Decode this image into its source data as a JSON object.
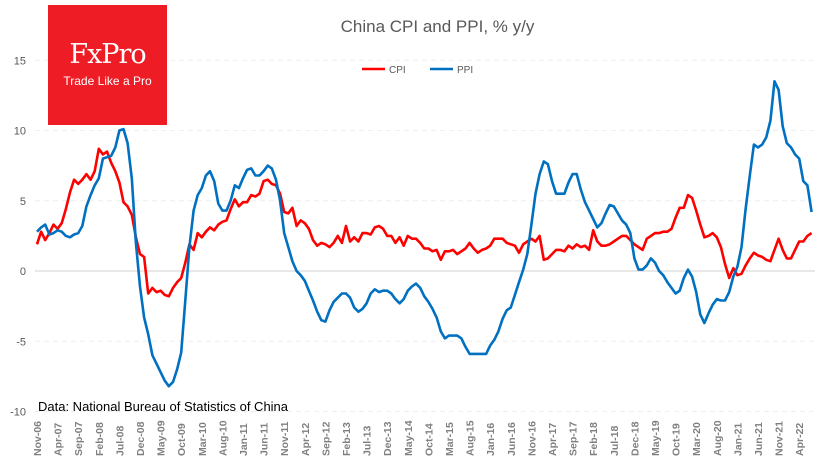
{
  "logo": {
    "brand": "FxPro",
    "tagline": "Trade Like a Pro"
  },
  "source_note": "Data: National Bureau of Statistics of China",
  "chart_data": {
    "type": "line",
    "title": "China CPI and PPI, % y/y",
    "xlabel": "",
    "ylabel": "",
    "ylim": [
      -10,
      15
    ],
    "y_ticks": [
      -10,
      -5,
      0,
      5,
      10,
      15
    ],
    "grid": true,
    "legend_position": "top-center",
    "start_month": "Nov-06",
    "end_month": "Jul-22",
    "x_tick_every_months": 5,
    "x_tick_labels": [
      "Nov-06",
      "Apr-07",
      "Sep-07",
      "Feb-08",
      "Jul-08",
      "Dec-08",
      "May-09",
      "Oct-09",
      "Mar-10",
      "Aug-10",
      "Jan-11",
      "Jun-11",
      "Nov-11",
      "Apr-12",
      "Sep-12",
      "Feb-13",
      "Jul-13",
      "Dec-13",
      "May-14",
      "Oct-14",
      "Mar-15",
      "Aug-15",
      "Jan-16",
      "Jun-16",
      "Nov-16",
      "Apr-17",
      "Sep-17",
      "Feb-18",
      "Jul-18",
      "Dec-18",
      "May-19",
      "Oct-19",
      "Mar-20",
      "Aug-20",
      "Jan-21",
      "Jun-21",
      "Nov-21",
      "Apr-22"
    ],
    "series": [
      {
        "name": "CPI",
        "color": "#ff0000",
        "values": [
          1.9,
          2.8,
          2.2,
          2.7,
          3.3,
          3.0,
          3.4,
          4.4,
          5.6,
          6.5,
          6.2,
          6.5,
          6.9,
          6.5,
          7.1,
          8.7,
          8.3,
          8.5,
          7.7,
          7.1,
          6.3,
          4.9,
          4.6,
          4.0,
          2.4,
          1.2,
          1.0,
          -1.6,
          -1.2,
          -1.5,
          -1.4,
          -1.7,
          -1.8,
          -1.2,
          -0.8,
          -0.5,
          0.6,
          1.9,
          1.5,
          2.7,
          2.4,
          2.8,
          3.1,
          2.9,
          3.3,
          3.5,
          3.6,
          4.4,
          5.1,
          4.6,
          4.9,
          4.9,
          5.4,
          5.3,
          5.5,
          6.4,
          6.5,
          6.2,
          6.1,
          5.5,
          4.2,
          4.1,
          4.5,
          3.2,
          3.6,
          3.4,
          3.0,
          2.2,
          1.8,
          2.0,
          1.9,
          1.7,
          2.0,
          2.5,
          2.0,
          3.2,
          2.1,
          2.4,
          2.1,
          2.7,
          2.7,
          2.6,
          3.1,
          3.2,
          3.0,
          2.5,
          2.5,
          2.0,
          2.4,
          1.8,
          2.5,
          2.3,
          2.3,
          2.0,
          1.6,
          1.6,
          1.4,
          1.5,
          0.8,
          1.4,
          1.4,
          1.5,
          1.2,
          1.4,
          1.6,
          2.0,
          1.6,
          1.3,
          1.5,
          1.6,
          1.8,
          2.3,
          2.3,
          2.3,
          2.0,
          1.9,
          1.8,
          1.3,
          1.9,
          2.1,
          2.3,
          2.1,
          2.5,
          0.8,
          0.9,
          1.2,
          1.5,
          1.5,
          1.4,
          1.8,
          1.6,
          1.9,
          1.7,
          1.8,
          1.5,
          2.9,
          2.1,
          1.8,
          1.8,
          1.9,
          2.1,
          2.3,
          2.5,
          2.5,
          2.2,
          1.9,
          1.7,
          1.5,
          2.3,
          2.5,
          2.7,
          2.7,
          2.8,
          2.8,
          3.0,
          3.8,
          4.5,
          4.5,
          5.4,
          5.2,
          4.3,
          3.3,
          2.4,
          2.5,
          2.7,
          2.4,
          1.7,
          0.5,
          -0.5,
          0.2,
          -0.3,
          -0.2,
          0.4,
          0.9,
          1.3,
          1.1,
          1.0,
          0.8,
          0.7,
          1.5,
          2.3,
          1.5,
          0.9,
          0.9,
          1.5,
          2.1,
          2.1,
          2.5,
          2.7
        ]
      },
      {
        "name": "PPI",
        "color": "#0070c0",
        "values": [
          2.8,
          3.1,
          3.3,
          2.6,
          2.7,
          2.9,
          2.8,
          2.5,
          2.4,
          2.6,
          2.7,
          3.2,
          4.6,
          5.4,
          6.1,
          6.6,
          8.0,
          8.1,
          8.2,
          8.8,
          10.0,
          10.1,
          9.1,
          6.6,
          2.0,
          -1.1,
          -3.3,
          -4.5,
          -6.0,
          -6.6,
          -7.2,
          -7.8,
          -8.2,
          -7.9,
          -7.0,
          -5.8,
          -2.1,
          1.7,
          4.3,
          5.4,
          5.9,
          6.8,
          7.1,
          6.4,
          4.8,
          4.3,
          4.3,
          5.0,
          6.1,
          5.9,
          6.6,
          7.2,
          7.3,
          6.8,
          6.8,
          7.1,
          7.5,
          7.3,
          6.5,
          5.0,
          2.7,
          1.7,
          0.7,
          0.0,
          -0.3,
          -0.7,
          -1.4,
          -2.1,
          -2.9,
          -3.5,
          -3.6,
          -2.8,
          -2.2,
          -1.9,
          -1.6,
          -1.6,
          -1.9,
          -2.6,
          -2.9,
          -2.7,
          -2.3,
          -1.6,
          -1.3,
          -1.5,
          -1.4,
          -1.4,
          -1.6,
          -2.0,
          -2.3,
          -2.0,
          -1.4,
          -1.1,
          -0.9,
          -1.2,
          -1.8,
          -2.2,
          -2.7,
          -3.3,
          -4.3,
          -4.8,
          -4.6,
          -4.6,
          -4.6,
          -4.8,
          -5.4,
          -5.9,
          -5.9,
          -5.9,
          -5.9,
          -5.9,
          -5.3,
          -4.9,
          -4.3,
          -3.4,
          -2.8,
          -2.6,
          -1.7,
          -0.8,
          0.1,
          1.2,
          3.3,
          5.5,
          6.9,
          7.8,
          7.6,
          6.4,
          5.5,
          5.5,
          5.5,
          6.3,
          6.9,
          6.9,
          5.8,
          4.9,
          4.3,
          3.7,
          3.1,
          3.4,
          4.1,
          4.7,
          4.6,
          4.1,
          3.6,
          3.3,
          2.7,
          0.9,
          0.1,
          0.1,
          0.4,
          0.9,
          0.6,
          0.0,
          -0.3,
          -0.8,
          -1.2,
          -1.6,
          -1.4,
          -0.5,
          0.1,
          -0.4,
          -1.5,
          -3.1,
          -3.7,
          -3.0,
          -2.4,
          -2.0,
          -2.1,
          -2.1,
          -1.5,
          -0.4,
          0.3,
          1.7,
          4.4,
          6.8,
          9.0,
          8.8,
          9.0,
          9.5,
          10.7,
          13.5,
          12.9,
          10.3,
          9.1,
          8.8,
          8.3,
          8.0,
          6.4,
          6.1,
          4.2
        ]
      }
    ]
  }
}
